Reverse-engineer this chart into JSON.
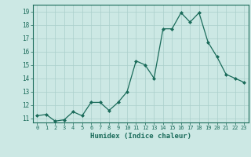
{
  "x": [
    0,
    1,
    2,
    3,
    4,
    5,
    6,
    7,
    8,
    9,
    10,
    11,
    12,
    13,
    14,
    15,
    16,
    17,
    18,
    19,
    20,
    21,
    22,
    23
  ],
  "y": [
    11.2,
    11.3,
    10.8,
    10.9,
    11.5,
    11.2,
    12.2,
    12.2,
    11.6,
    12.2,
    13.0,
    15.3,
    15.0,
    14.0,
    17.7,
    17.7,
    18.9,
    18.2,
    18.9,
    16.7,
    15.6,
    14.3,
    14.0,
    13.7
  ],
  "xlabel": "Humidex (Indice chaleur)",
  "ylim": [
    10.7,
    19.5
  ],
  "xlim": [
    -0.5,
    23.5
  ],
  "yticks": [
    11,
    12,
    13,
    14,
    15,
    16,
    17,
    18,
    19
  ],
  "xticks": [
    0,
    1,
    2,
    3,
    4,
    5,
    6,
    7,
    8,
    9,
    10,
    11,
    12,
    13,
    14,
    15,
    16,
    17,
    18,
    19,
    20,
    21,
    22,
    23
  ],
  "line_color": "#1a6b5a",
  "marker_color": "#1a6b5a",
  "bg_color": "#cce8e4",
  "grid_color": "#aacfcb",
  "tick_color": "#1a6b5a",
  "label_color": "#1a6b5a",
  "font_family": "monospace"
}
